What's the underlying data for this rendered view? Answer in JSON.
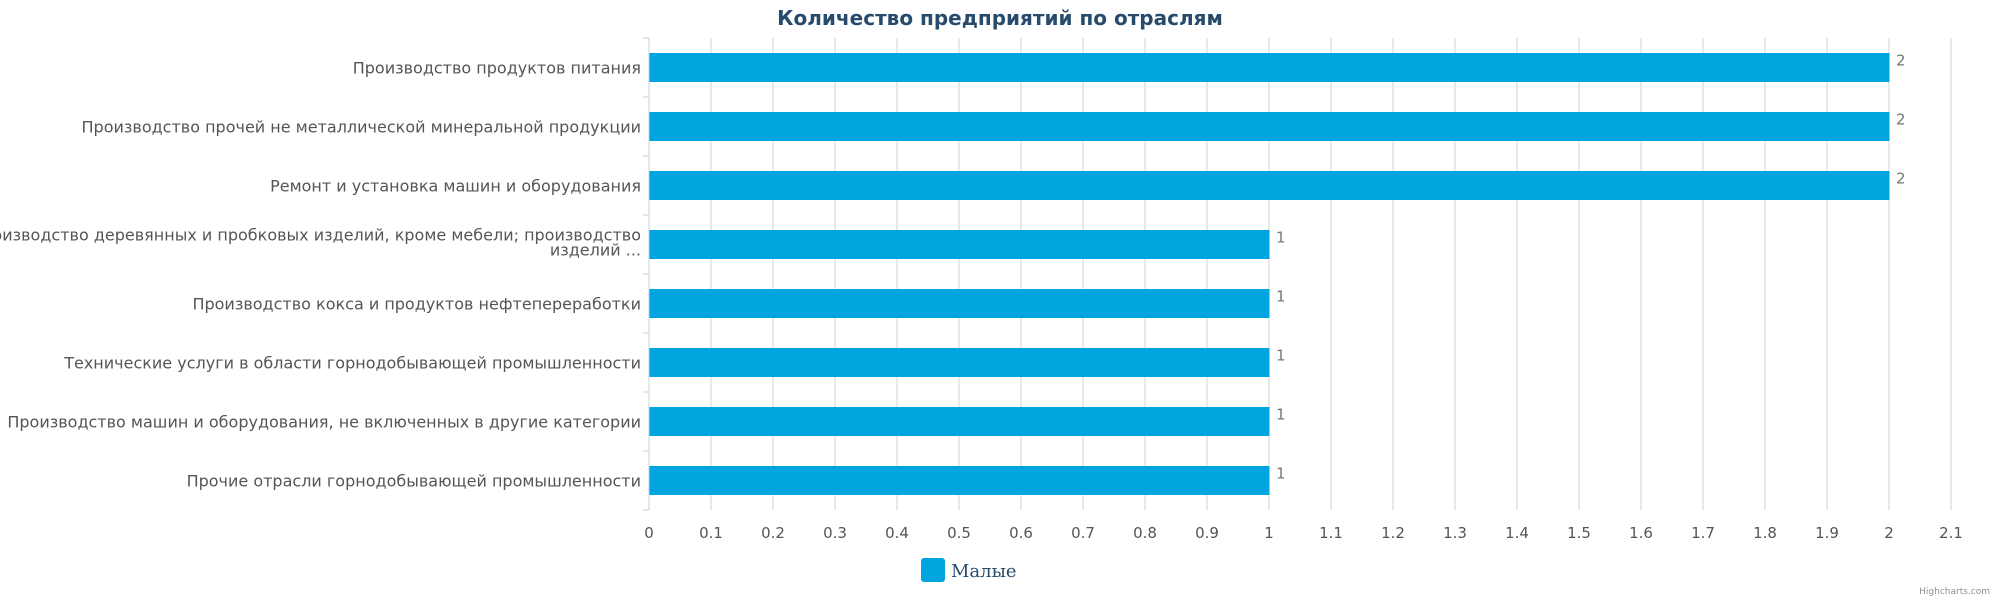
{
  "chart_data": {
    "type": "bar",
    "orientation": "horizontal",
    "title": "Количество предприятий по отраслям",
    "categories": [
      [
        "Производство продуктов питания"
      ],
      [
        "Производство прочей не металлической минеральной продукции"
      ],
      [
        "Ремонт и установка машин и оборудования"
      ],
      [
        "Производство деревянных и пробковых изделий, кроме мебели; производство",
        "изделий ..."
      ],
      [
        "Производство кокса и продуктов нефтепереработки"
      ],
      [
        "Технические услуги в области горнодобывающей промышленности"
      ],
      [
        "Производство машин и оборудования, не включенных в другие категории"
      ],
      [
        "Прочие отрасли горнодобывающей промышленности"
      ]
    ],
    "series": [
      {
        "name": "Малые",
        "color": "#00a5e0",
        "values": [
          2,
          2,
          2,
          1,
          1,
          1,
          1,
          1
        ]
      }
    ],
    "data_labels": [
      "2",
      "2",
      "2",
      "1",
      "1",
      "1",
      "1",
      "1"
    ],
    "xlim": [
      0,
      2.1
    ],
    "ticks": [
      "0",
      "0.1",
      "0.2",
      "0.3",
      "0.4",
      "0.5",
      "0.6",
      "0.7",
      "0.8",
      "0.9",
      "1",
      "1.1",
      "1.2",
      "1.3",
      "1.4",
      "1.5",
      "1.6",
      "1.7",
      "1.8",
      "1.9",
      "2",
      "2.1"
    ],
    "grid": true,
    "legend_position": "bottom-center"
  },
  "credits": "Highcharts.com"
}
